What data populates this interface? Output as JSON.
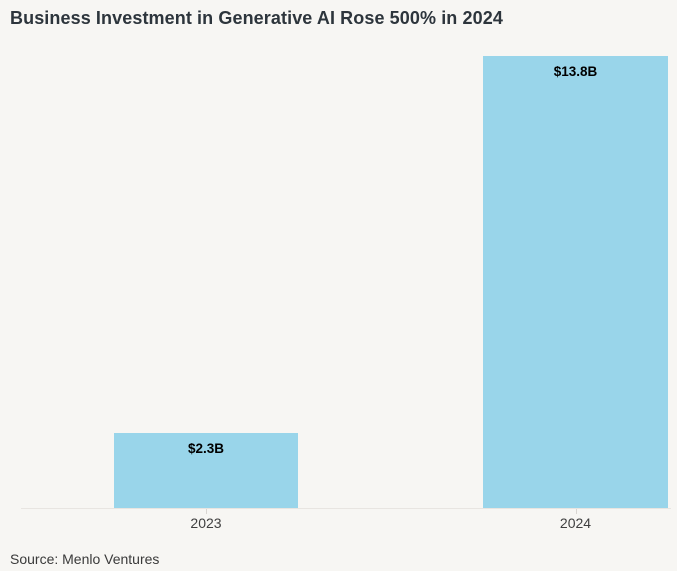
{
  "title": "Business Investment in Generative AI Rose 500% in 2024",
  "source_note": "Source: Menlo Ventures",
  "colors": {
    "background": "#f7f6f3",
    "bar_fill": "#99d5ea",
    "title_text": "#2d353c",
    "axis_line": "#e8e5e1",
    "tick_label_text": "#3f3f3f",
    "value_label_text": "#000000"
  },
  "chart_data": {
    "type": "bar",
    "categories": [
      "2023",
      "2024"
    ],
    "values": [
      2.3,
      13.8
    ],
    "value_labels": [
      "$2.3B",
      "$13.8B"
    ],
    "title": "Business Investment in Generative AI Rose 500% in 2024",
    "xlabel": "",
    "ylabel": "",
    "ylim": [
      0,
      13.8
    ],
    "grid": false,
    "legend": false,
    "value_label_position": "inside-top",
    "units": "billions USD"
  }
}
